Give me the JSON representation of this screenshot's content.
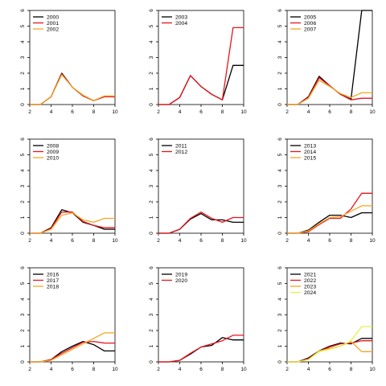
{
  "colors": {
    "axis": "#000000",
    "black": "#000000",
    "red": "#e8141c",
    "orange": "#f5a623",
    "yellow": "#e6f04a"
  },
  "chart_data": [
    {
      "type": "line",
      "x": [
        2,
        3,
        4,
        5,
        6,
        7,
        8,
        9,
        10
      ],
      "xticks": [
        2,
        4,
        6,
        8,
        10
      ],
      "yticks": [
        0,
        1,
        2,
        3,
        4,
        5,
        6
      ],
      "xlim": [
        2,
        10
      ],
      "ylim": [
        0,
        6
      ],
      "legend": "top-left",
      "series": [
        {
          "name": "2000",
          "color": "#000000",
          "values": [
            0,
            0,
            0.5,
            2.0,
            1.1,
            0.55,
            0.25,
            0.5,
            0.5
          ]
        },
        {
          "name": "2001",
          "color": "#e8141c",
          "values": [
            0,
            0,
            0.5,
            1.95,
            1.1,
            0.55,
            0.25,
            0.5,
            0.5
          ]
        },
        {
          "name": "2002",
          "color": "#f5a623",
          "values": [
            0,
            0,
            0.5,
            1.9,
            1.1,
            0.6,
            0.25,
            0.55,
            0.55
          ]
        }
      ]
    },
    {
      "type": "line",
      "x": [
        2,
        3,
        4,
        5,
        6,
        7,
        8,
        9,
        10
      ],
      "xticks": [
        2,
        4,
        6,
        8,
        10
      ],
      "yticks": [
        0,
        1,
        2,
        3,
        4,
        5,
        6
      ],
      "xlim": [
        2,
        10
      ],
      "ylim": [
        0,
        6
      ],
      "legend": "top-left",
      "series": [
        {
          "name": "2003",
          "color": "#000000",
          "values": [
            0,
            0,
            0.45,
            1.85,
            1.15,
            0.65,
            0.3,
            2.5,
            2.5
          ]
        },
        {
          "name": "2004",
          "color": "#e8141c",
          "values": [
            0,
            0,
            0.45,
            1.85,
            1.15,
            0.65,
            0.3,
            4.9,
            4.9
          ]
        }
      ]
    },
    {
      "type": "line",
      "x": [
        2,
        3,
        4,
        5,
        6,
        7,
        8,
        9,
        10
      ],
      "xticks": [
        2,
        4,
        6,
        8,
        10
      ],
      "yticks": [
        0,
        1,
        2,
        3,
        4,
        5,
        6
      ],
      "xlim": [
        2,
        10
      ],
      "ylim": [
        0,
        6
      ],
      "legend": "top-left",
      "series": [
        {
          "name": "2005",
          "color": "#000000",
          "values": [
            0,
            0,
            0.5,
            1.8,
            1.2,
            0.65,
            0.35,
            6.0,
            6.0
          ]
        },
        {
          "name": "2006",
          "color": "#e8141c",
          "values": [
            0,
            0,
            0.45,
            1.7,
            1.2,
            0.65,
            0.3,
            0.4,
            0.4
          ]
        },
        {
          "name": "2007",
          "color": "#f5a623",
          "values": [
            0,
            0,
            0.4,
            1.55,
            1.15,
            0.7,
            0.45,
            0.75,
            0.75
          ]
        }
      ]
    },
    {
      "type": "line",
      "x": [
        2,
        3,
        4,
        5,
        6,
        7,
        8,
        9,
        10
      ],
      "xticks": [
        2,
        4,
        6,
        8,
        10
      ],
      "yticks": [
        0,
        1,
        2,
        3,
        4,
        5,
        6
      ],
      "xlim": [
        2,
        10
      ],
      "ylim": [
        0,
        6
      ],
      "legend": "top-left",
      "series": [
        {
          "name": "2008",
          "color": "#000000",
          "values": [
            0,
            0,
            0.35,
            1.5,
            1.3,
            0.7,
            0.5,
            0.25,
            0.25
          ]
        },
        {
          "name": "2009",
          "color": "#e8141c",
          "values": [
            0,
            0,
            0.3,
            1.35,
            1.35,
            0.75,
            0.5,
            0.35,
            0.35
          ]
        },
        {
          "name": "2010",
          "color": "#f5a623",
          "values": [
            0,
            0,
            0.25,
            1.15,
            1.3,
            0.85,
            0.7,
            0.95,
            0.95
          ]
        }
      ]
    },
    {
      "type": "line",
      "x": [
        2,
        3,
        4,
        5,
        6,
        7,
        8,
        9,
        10
      ],
      "xticks": [
        2,
        4,
        6,
        8,
        10
      ],
      "yticks": [
        0,
        1,
        2,
        3,
        4,
        5,
        6
      ],
      "xlim": [
        2,
        10
      ],
      "ylim": [
        0,
        6
      ],
      "legend": "top-left",
      "series": [
        {
          "name": "2011",
          "color": "#000000",
          "values": [
            0,
            0,
            0.25,
            0.9,
            1.25,
            0.85,
            0.85,
            0.7,
            0.7
          ]
        },
        {
          "name": "2012",
          "color": "#e8141c",
          "values": [
            0,
            0,
            0.25,
            0.95,
            1.35,
            0.95,
            0.7,
            1.0,
            1.0
          ]
        }
      ]
    },
    {
      "type": "line",
      "x": [
        2,
        3,
        4,
        5,
        6,
        7,
        8,
        9,
        10
      ],
      "xticks": [
        2,
        4,
        6,
        8,
        10
      ],
      "yticks": [
        0,
        1,
        2,
        3,
        4,
        5,
        6
      ],
      "xlim": [
        2,
        10
      ],
      "ylim": [
        0,
        6
      ],
      "legend": "top-left",
      "series": [
        {
          "name": "2013",
          "color": "#000000",
          "values": [
            0,
            0,
            0.2,
            0.7,
            1.15,
            1.15,
            1.0,
            1.3,
            1.3
          ]
        },
        {
          "name": "2014",
          "color": "#e8141c",
          "values": [
            0,
            0,
            0.1,
            0.55,
            0.95,
            0.95,
            1.55,
            2.55,
            2.55
          ]
        },
        {
          "name": "2015",
          "color": "#f5a623",
          "values": [
            0,
            0,
            0.15,
            0.6,
            1.0,
            1.05,
            1.4,
            1.75,
            1.75
          ]
        }
      ]
    },
    {
      "type": "line",
      "x": [
        2,
        3,
        4,
        5,
        6,
        7,
        8,
        9,
        10
      ],
      "xticks": [
        2,
        4,
        6,
        8,
        10
      ],
      "yticks": [
        0,
        1,
        2,
        3,
        4,
        5,
        6
      ],
      "xlim": [
        2,
        10
      ],
      "ylim": [
        0,
        6
      ],
      "legend": "top-left",
      "series": [
        {
          "name": "2016",
          "color": "#000000",
          "values": [
            0,
            0,
            0.15,
            0.65,
            1.0,
            1.3,
            1.1,
            0.7,
            0.7
          ]
        },
        {
          "name": "2017",
          "color": "#e8141c",
          "values": [
            0,
            0,
            0.15,
            0.55,
            0.9,
            1.25,
            1.3,
            1.2,
            1.2
          ]
        },
        {
          "name": "2018",
          "color": "#f5a623",
          "values": [
            0,
            0,
            0.1,
            0.45,
            0.8,
            1.15,
            1.5,
            1.85,
            1.85
          ]
        }
      ]
    },
    {
      "type": "line",
      "x": [
        2,
        3,
        4,
        5,
        6,
        7,
        8,
        9,
        10
      ],
      "xticks": [
        2,
        4,
        6,
        8,
        10
      ],
      "yticks": [
        0,
        1,
        2,
        3,
        4,
        5,
        6
      ],
      "xlim": [
        2,
        10
      ],
      "ylim": [
        0,
        6
      ],
      "legend": "top-left",
      "series": [
        {
          "name": "2019",
          "color": "#000000",
          "values": [
            0,
            0,
            0.1,
            0.5,
            0.95,
            1.05,
            1.55,
            1.4,
            1.4
          ]
        },
        {
          "name": "2020",
          "color": "#e8141c",
          "values": [
            0,
            0,
            0.1,
            0.55,
            0.95,
            1.15,
            1.35,
            1.7,
            1.7
          ]
        }
      ]
    },
    {
      "type": "line",
      "x": [
        2,
        3,
        4,
        5,
        6,
        7,
        8,
        9,
        10
      ],
      "xticks": [
        2,
        4,
        6,
        8,
        10
      ],
      "yticks": [
        0,
        1,
        2,
        3,
        4,
        5,
        6
      ],
      "xlim": [
        2,
        10
      ],
      "ylim": [
        0,
        6
      ],
      "legend": "top-left",
      "series": [
        {
          "name": "2021",
          "color": "#000000",
          "values": [
            0,
            0,
            0.25,
            0.7,
            1.0,
            1.2,
            1.15,
            1.5,
            1.5
          ]
        },
        {
          "name": "2022",
          "color": "#e8141c",
          "values": [
            0,
            0,
            0.2,
            0.65,
            0.95,
            1.15,
            1.2,
            1.35,
            1.35
          ]
        },
        {
          "name": "2023",
          "color": "#f5a623",
          "values": [
            0,
            0,
            0.15,
            0.7,
            0.85,
            1.0,
            1.3,
            0.65,
            0.65
          ]
        },
        {
          "name": "2024",
          "color": "#e6f04a",
          "values": [
            0,
            0,
            0.15,
            0.65,
            0.8,
            1.0,
            1.35,
            2.25,
            2.25
          ]
        }
      ]
    }
  ]
}
